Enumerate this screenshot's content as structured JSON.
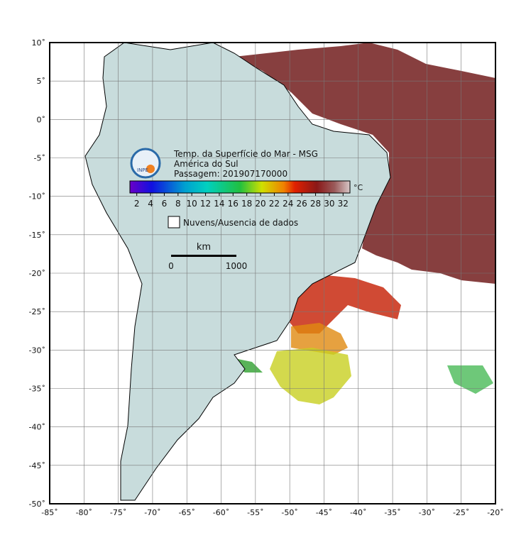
{
  "map": {
    "xlim": [
      -85,
      -20
    ],
    "ylim": [
      -50,
      10
    ],
    "xticks": [
      {
        "value": -85,
        "label": "-85˚"
      },
      {
        "value": -80,
        "label": "-80˚"
      },
      {
        "value": -75,
        "label": "-75˚"
      },
      {
        "value": -70,
        "label": "-70˚"
      },
      {
        "value": -65,
        "label": "-65˚"
      },
      {
        "value": -60,
        "label": "-60˚"
      },
      {
        "value": -55,
        "label": "-55˚"
      },
      {
        "value": -50,
        "label": "-50˚"
      },
      {
        "value": -45,
        "label": "-45˚"
      },
      {
        "value": -40,
        "label": "-40˚"
      },
      {
        "value": -35,
        "label": "-35˚"
      },
      {
        "value": -30,
        "label": "-30˚"
      },
      {
        "value": -25,
        "label": "-25˚"
      },
      {
        "value": -20,
        "label": "-20˚"
      }
    ],
    "yticks": [
      {
        "value": 10,
        "label": "10˚"
      },
      {
        "value": 5,
        "label": "5˚"
      },
      {
        "value": 0,
        "label": "0˚"
      },
      {
        "value": -5,
        "label": "-5˚"
      },
      {
        "value": -10,
        "label": "-10˚"
      },
      {
        "value": -15,
        "label": "-15˚"
      },
      {
        "value": -20,
        "label": "-20˚"
      },
      {
        "value": -25,
        "label": "-25˚"
      },
      {
        "value": -30,
        "label": "-30˚"
      },
      {
        "value": -35,
        "label": "-35˚"
      },
      {
        "value": -40,
        "label": "-40˚"
      },
      {
        "value": -45,
        "label": "-45˚"
      },
      {
        "value": -50,
        "label": "-50˚"
      }
    ]
  },
  "logo": "INPE",
  "title": {
    "line1": "Temp. da Superfície do Mar - MSG",
    "line2": "América do Sul",
    "line3": "Passagem: 201907170000"
  },
  "colorbar": {
    "lim": [
      1,
      33
    ],
    "ticks": [
      2,
      4,
      6,
      8,
      10,
      12,
      14,
      16,
      18,
      20,
      22,
      24,
      26,
      28,
      30,
      32
    ],
    "unit": "°C"
  },
  "legend": "Nuvens/Ausencia de dados",
  "scale": {
    "unit": "km",
    "start": 0,
    "end": 1000
  }
}
